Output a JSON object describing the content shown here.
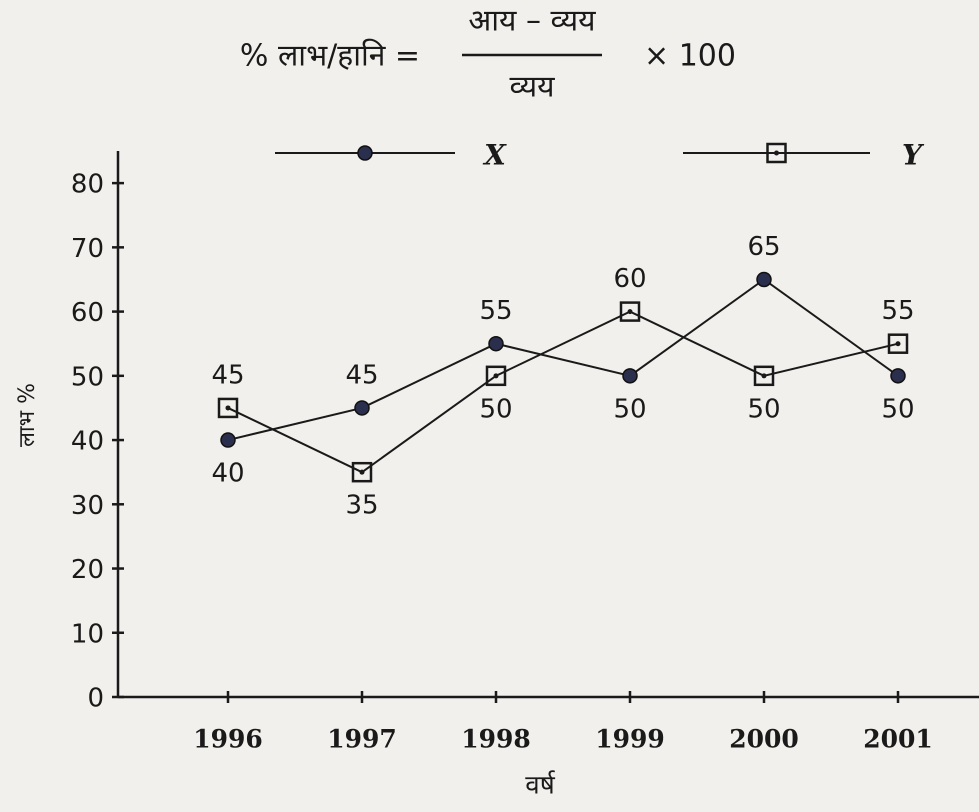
{
  "chart_data": {
    "type": "line",
    "formula": {
      "left": "% लाभ/हानि =",
      "numerator": "आय – व्यय",
      "denominator": "व्यय",
      "right": "× 100"
    },
    "xlabel": "वर्ष",
    "ylabel": "लाभ %",
    "categories": [
      "1996",
      "1997",
      "1998",
      "1999",
      "2000",
      "2001"
    ],
    "series": [
      {
        "name": "X",
        "color": "#2b2f4e",
        "marker": "circle",
        "values": [
          40,
          45,
          55,
          50,
          65,
          50
        ]
      },
      {
        "name": "Y",
        "color": "#1a1a1a",
        "marker": "square",
        "values": [
          45,
          35,
          50,
          60,
          50,
          55
        ]
      }
    ],
    "ylim": [
      0,
      85
    ],
    "yticks": [
      0,
      10,
      20,
      30,
      40,
      50,
      60,
      70,
      80
    ],
    "grid": false
  }
}
